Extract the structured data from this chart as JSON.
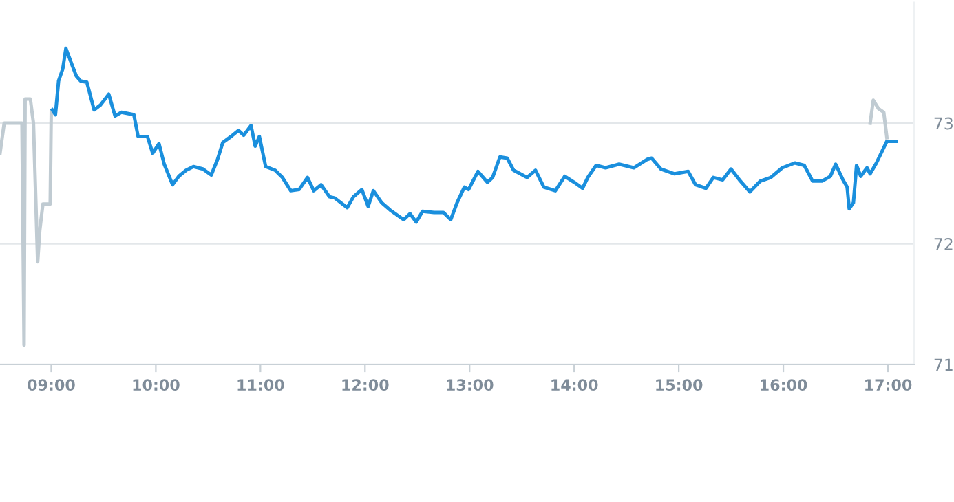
{
  "chart_data": {
    "type": "line",
    "series": [
      {
        "color": "#c0cbd2",
        "x": [
          8.51,
          8.55,
          8.72,
          8.74,
          8.75,
          8.8,
          8.83,
          8.87,
          8.89,
          8.92,
          8.99,
          9.0
        ],
        "values": [
          72.75,
          73.0,
          73.0,
          71.16,
          73.2,
          73.2,
          73.0,
          71.85,
          72.11,
          72.33,
          72.33,
          73.09
        ]
      },
      {
        "color": "#1a8fdd",
        "x": [
          9.01,
          9.04,
          9.07,
          9.11,
          9.14,
          9.2,
          9.24,
          9.28,
          9.34,
          9.41,
          9.47,
          9.55,
          9.61,
          9.67,
          9.79,
          9.83,
          9.92,
          9.97,
          10.03,
          10.08,
          10.16,
          10.22,
          10.29,
          10.36,
          10.45,
          10.53,
          10.59,
          10.64,
          10.72,
          10.79,
          10.84,
          10.91,
          10.95,
          10.99,
          11.05,
          11.14,
          11.21,
          11.29,
          11.37,
          11.45,
          11.51,
          11.58,
          11.66,
          11.71,
          11.83,
          11.89,
          11.97,
          12.03,
          12.08,
          12.16,
          12.24,
          12.37,
          12.43,
          12.49,
          12.55,
          12.66,
          12.75,
          12.82,
          12.88,
          12.95,
          12.99,
          13.08,
          13.17,
          13.22,
          13.29,
          13.36,
          13.42,
          13.55,
          13.63,
          13.71,
          13.82,
          13.91,
          14.0,
          14.08,
          14.13,
          14.21,
          14.3,
          14.43,
          14.57,
          14.7,
          14.74,
          14.83,
          14.96,
          15.09,
          15.16,
          15.26,
          15.33,
          15.42,
          15.5,
          15.58,
          15.68,
          15.78,
          15.88,
          15.99,
          16.11,
          16.2,
          16.28,
          16.37,
          16.45,
          16.5,
          16.57,
          16.61,
          16.63,
          16.67,
          16.7,
          16.74,
          16.8,
          16.83,
          16.89,
          16.99,
          17.08
        ],
        "values": [
          73.11,
          73.07,
          73.35,
          73.45,
          73.62,
          73.48,
          73.39,
          73.35,
          73.34,
          73.11,
          73.15,
          73.24,
          73.06,
          73.09,
          73.07,
          72.89,
          72.89,
          72.75,
          72.83,
          72.66,
          72.49,
          72.56,
          72.61,
          72.64,
          72.62,
          72.57,
          72.7,
          72.84,
          72.89,
          72.94,
          72.9,
          72.98,
          72.81,
          72.89,
          72.64,
          72.61,
          72.55,
          72.44,
          72.45,
          72.55,
          72.44,
          72.49,
          72.39,
          72.38,
          72.3,
          72.39,
          72.45,
          72.31,
          72.44,
          72.34,
          72.28,
          72.2,
          72.25,
          72.18,
          72.27,
          72.26,
          72.26,
          72.2,
          72.34,
          72.47,
          72.45,
          72.6,
          72.51,
          72.55,
          72.72,
          72.71,
          72.61,
          72.55,
          72.61,
          72.47,
          72.44,
          72.56,
          72.51,
          72.46,
          72.55,
          72.65,
          72.63,
          72.66,
          72.63,
          72.7,
          72.71,
          72.62,
          72.58,
          72.6,
          72.49,
          72.46,
          72.55,
          72.53,
          72.62,
          72.53,
          72.43,
          72.52,
          72.55,
          72.63,
          72.67,
          72.65,
          72.52,
          72.52,
          72.56,
          72.66,
          72.53,
          72.47,
          72.29,
          72.34,
          72.65,
          72.56,
          72.63,
          72.58,
          72.67,
          72.85,
          72.85
        ]
      },
      {
        "color": "#c0cbd2",
        "x": [
          16.83,
          16.86,
          16.91,
          16.96,
          16.99
        ],
        "values": [
          73.0,
          73.19,
          73.12,
          73.09,
          72.88
        ]
      }
    ],
    "xlim": [
      8.51,
      17.25
    ],
    "xticks": [
      {
        "value": 9,
        "label": "09:00"
      },
      {
        "value": 10,
        "label": "10:00"
      },
      {
        "value": 11,
        "label": "11:00"
      },
      {
        "value": 12,
        "label": "12:00"
      },
      {
        "value": 13,
        "label": "13:00"
      },
      {
        "value": 14,
        "label": "14:00"
      },
      {
        "value": 15,
        "label": "15:00"
      },
      {
        "value": 16,
        "label": "16:00"
      },
      {
        "value": 17,
        "label": "17:00"
      }
    ],
    "ylim": [
      71,
      74
    ],
    "yticks": [
      71,
      72,
      73
    ],
    "grid": "y",
    "legend": false
  }
}
